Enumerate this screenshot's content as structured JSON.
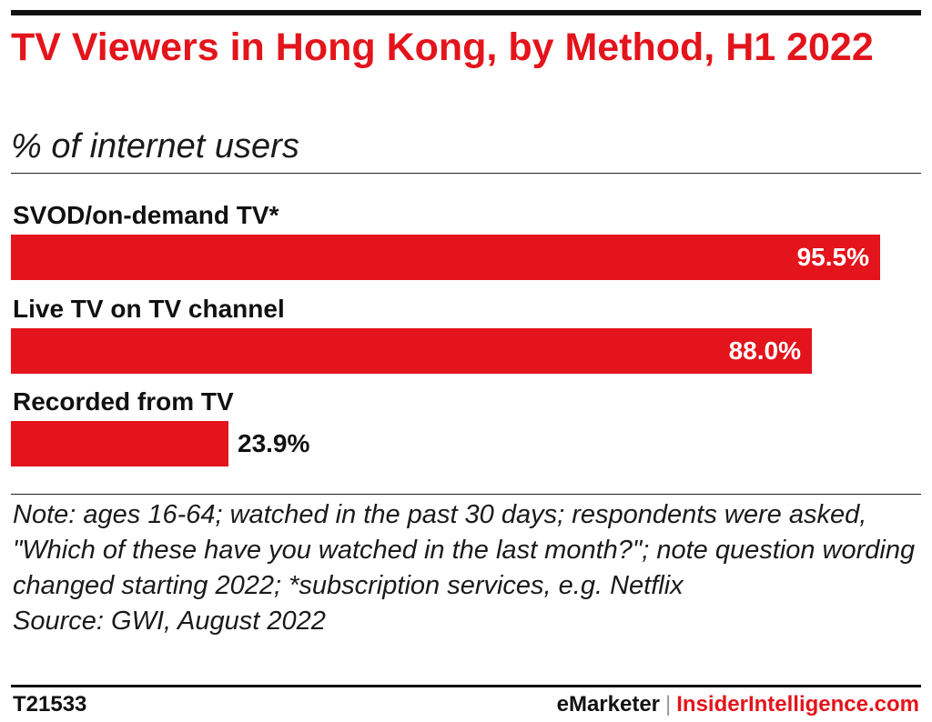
{
  "chart_data": {
    "type": "bar",
    "orientation": "horizontal",
    "title": "TV Viewers in Hong Kong, by Method, H1 2022",
    "subtitle": "% of internet users",
    "categories": [
      "SVOD/on-demand TV*",
      "Live TV on TV channel",
      "Recorded from TV"
    ],
    "values": [
      95.5,
      88.0,
      23.9
    ],
    "value_labels": [
      "95.5%",
      "88.0%",
      "23.9%"
    ],
    "xlim": [
      0,
      100
    ],
    "grid": false,
    "legend": "none",
    "bar_color": "#e3141b"
  },
  "note": {
    "label": "Note:",
    "text": " ages 16-64; watched in the past 30 days; respondents were asked, \"Which of these have you watched in the last month?\"; note question wording changed starting 2022; *subscription services, e.g. Netflix"
  },
  "source": {
    "label": "Source:",
    "text": " GWI, August 2022"
  },
  "footer": {
    "chart_id": "T21533",
    "brand_primary": "eMarketer",
    "separator": "|",
    "brand_secondary": "InsiderIntelligence.com"
  },
  "colors": {
    "accent": "#e3141b",
    "text": "#111111"
  }
}
